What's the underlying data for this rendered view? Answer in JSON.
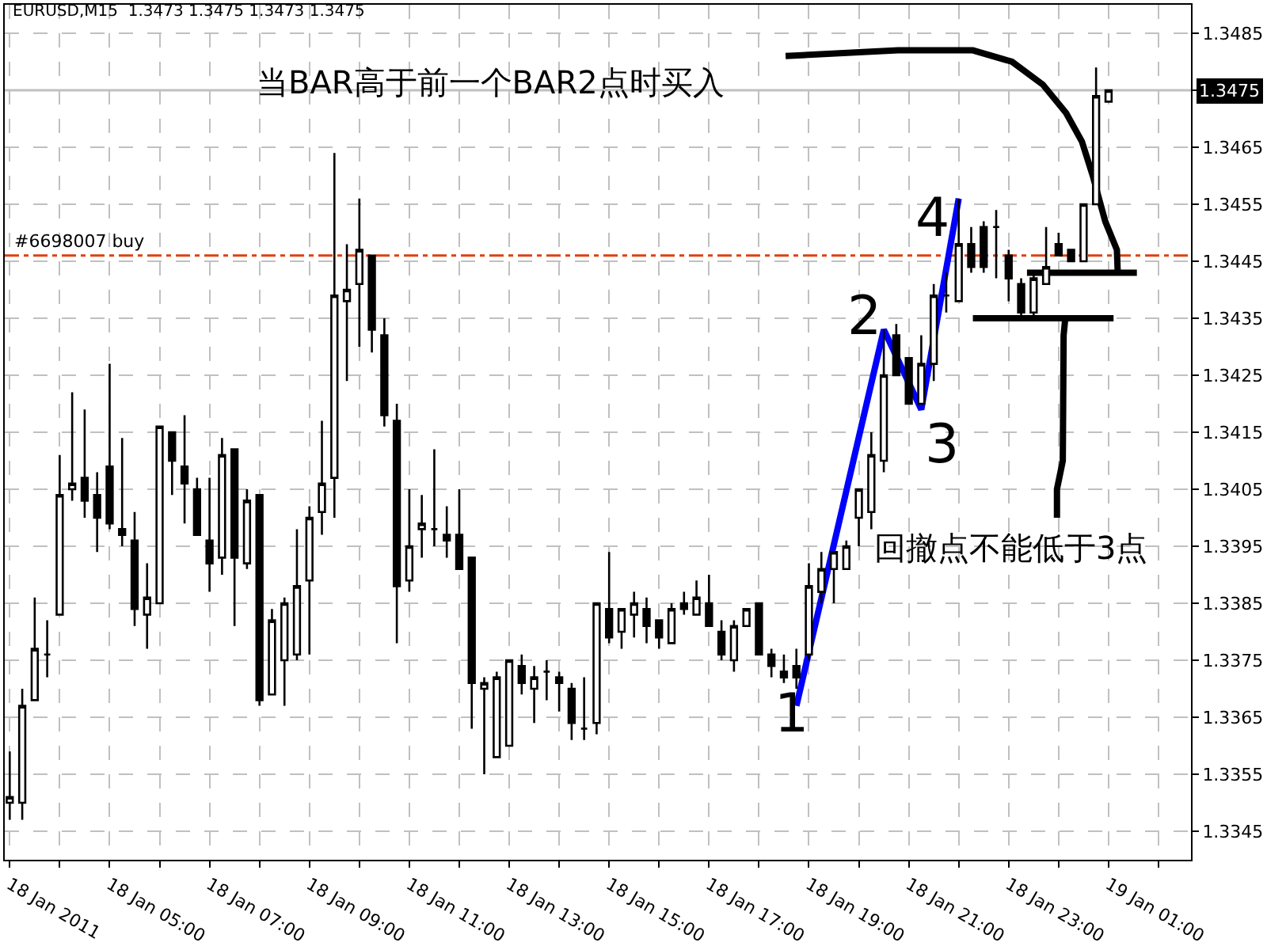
{
  "chart_data": {
    "type": "candlestick",
    "title": "EURUSD,M15  1.3473 1.3475 1.3473 1.3475",
    "x": [
      "2011-01-18T03:00",
      "2011-01-18T03:15",
      "2011-01-18T03:30",
      "2011-01-18T03:45",
      "2011-01-18T04:00",
      "2011-01-18T04:15",
      "2011-01-18T04:30",
      "2011-01-18T04:45",
      "2011-01-18T05:00",
      "2011-01-18T05:15",
      "2011-01-18T05:30",
      "2011-01-18T05:45",
      "2011-01-18T06:00",
      "2011-01-18T06:15",
      "2011-01-18T06:30",
      "2011-01-18T06:45",
      "2011-01-18T07:00",
      "2011-01-18T07:15",
      "2011-01-18T07:30",
      "2011-01-18T07:45",
      "2011-01-18T08:00",
      "2011-01-18T08:15",
      "2011-01-18T08:30",
      "2011-01-18T08:45",
      "2011-01-18T09:00",
      "2011-01-18T09:15",
      "2011-01-18T09:30",
      "2011-01-18T09:45",
      "2011-01-18T10:00",
      "2011-01-18T10:15",
      "2011-01-18T10:30",
      "2011-01-18T10:45",
      "2011-01-18T11:00",
      "2011-01-18T11:15",
      "2011-01-18T11:30",
      "2011-01-18T11:45",
      "2011-01-18T12:00",
      "2011-01-18T12:15",
      "2011-01-18T12:30",
      "2011-01-18T12:45",
      "2011-01-18T13:00",
      "2011-01-18T13:15",
      "2011-01-18T13:30",
      "2011-01-18T13:45",
      "2011-01-18T14:00",
      "2011-01-18T14:15",
      "2011-01-18T14:30",
      "2011-01-18T14:45",
      "2011-01-18T15:00",
      "2011-01-18T15:15",
      "2011-01-18T15:30",
      "2011-01-18T15:45",
      "2011-01-18T16:00",
      "2011-01-18T16:15",
      "2011-01-18T16:30",
      "2011-01-18T16:45",
      "2011-01-18T17:00",
      "2011-01-18T17:15",
      "2011-01-18T17:30",
      "2011-01-18T17:45",
      "2011-01-18T18:00",
      "2011-01-18T18:15",
      "2011-01-18T18:30",
      "2011-01-18T18:45",
      "2011-01-18T19:00",
      "2011-01-18T19:15",
      "2011-01-18T19:30",
      "2011-01-18T19:45",
      "2011-01-18T20:00",
      "2011-01-18T20:15",
      "2011-01-18T20:30",
      "2011-01-18T20:45",
      "2011-01-18T21:00",
      "2011-01-18T21:15",
      "2011-01-18T21:30",
      "2011-01-18T21:45",
      "2011-01-18T22:00",
      "2011-01-18T22:15",
      "2011-01-18T22:30",
      "2011-01-18T22:45",
      "2011-01-18T23:00",
      "2011-01-18T23:15",
      "2011-01-18T23:30",
      "2011-01-18T23:45",
      "2011-01-19T00:00",
      "2011-01-19T00:15",
      "2011-01-19T00:30",
      "2011-01-19T00:45",
      "2011-01-19T01:00"
    ],
    "ohlc": [
      [
        1.335,
        1.3359,
        1.3347,
        1.3351
      ],
      [
        1.335,
        1.337,
        1.3347,
        1.3367
      ],
      [
        1.3368,
        1.3386,
        1.3368,
        1.3377
      ],
      [
        1.3376,
        1.3382,
        1.3372,
        1.3376
      ],
      [
        1.3383,
        1.3411,
        1.3383,
        1.3404
      ],
      [
        1.3405,
        1.3422,
        1.3403,
        1.3406
      ],
      [
        1.3407,
        1.3419,
        1.34,
        1.3403
      ],
      [
        1.3404,
        1.3408,
        1.3394,
        1.34
      ],
      [
        1.3409,
        1.3427,
        1.3398,
        1.3399
      ],
      [
        1.3398,
        1.3414,
        1.3395,
        1.3397
      ],
      [
        1.3396,
        1.3401,
        1.3381,
        1.3384
      ],
      [
        1.3383,
        1.3392,
        1.3377,
        1.3386
      ],
      [
        1.3385,
        1.3416,
        1.3385,
        1.3416
      ],
      [
        1.3415,
        1.3415,
        1.3404,
        1.341
      ],
      [
        1.3409,
        1.3418,
        1.3399,
        1.3406
      ],
      [
        1.3405,
        1.3407,
        1.3397,
        1.3397
      ],
      [
        1.3396,
        1.3407,
        1.3387,
        1.3392
      ],
      [
        1.3393,
        1.3414,
        1.339,
        1.3411
      ],
      [
        1.3412,
        1.3412,
        1.3381,
        1.3393
      ],
      [
        1.3392,
        1.3405,
        1.3391,
        1.3403
      ],
      [
        1.3404,
        1.3404,
        1.3367,
        1.3368
      ],
      [
        1.3369,
        1.3384,
        1.3369,
        1.3382
      ],
      [
        1.3375,
        1.3386,
        1.3367,
        1.3385
      ],
      [
        1.3376,
        1.3398,
        1.3375,
        1.3388
      ],
      [
        1.3389,
        1.3402,
        1.3376,
        1.34
      ],
      [
        1.3401,
        1.3417,
        1.3397,
        1.3406
      ],
      [
        1.3407,
        1.3464,
        1.34,
        1.3439
      ],
      [
        1.3438,
        1.3448,
        1.3424,
        1.344
      ],
      [
        1.3441,
        1.3456,
        1.343,
        1.3447
      ],
      [
        1.3446,
        1.3446,
        1.3429,
        1.3433
      ],
      [
        1.3432,
        1.3435,
        1.3416,
        1.3418
      ],
      [
        1.3417,
        1.342,
        1.3378,
        1.3388
      ],
      [
        1.3389,
        1.3405,
        1.3387,
        1.3395
      ],
      [
        1.3398,
        1.3404,
        1.3393,
        1.3399
      ],
      [
        1.3398,
        1.3412,
        1.3395,
        1.3398
      ],
      [
        1.3397,
        1.3402,
        1.3393,
        1.3396
      ],
      [
        1.3397,
        1.3405,
        1.3391,
        1.3391
      ],
      [
        1.3393,
        1.3393,
        1.3363,
        1.3371
      ],
      [
        1.337,
        1.3372,
        1.3355,
        1.3371
      ],
      [
        1.3358,
        1.3373,
        1.3358,
        1.3372
      ],
      [
        1.336,
        1.3375,
        1.336,
        1.3375
      ],
      [
        1.3374,
        1.3376,
        1.3369,
        1.3371
      ],
      [
        1.337,
        1.3374,
        1.3364,
        1.3372
      ],
      [
        1.3373,
        1.3375,
        1.3368,
        1.3373
      ],
      [
        1.3372,
        1.3373,
        1.3366,
        1.3371
      ],
      [
        1.337,
        1.3371,
        1.3361,
        1.3364
      ],
      [
        1.3363,
        1.3372,
        1.3361,
        1.3363
      ],
      [
        1.3364,
        1.3385,
        1.3362,
        1.3385
      ],
      [
        1.3384,
        1.3394,
        1.3378,
        1.3379
      ],
      [
        1.338,
        1.3384,
        1.3377,
        1.3384
      ],
      [
        1.3383,
        1.3387,
        1.3379,
        1.3385
      ],
      [
        1.3384,
        1.3386,
        1.3378,
        1.3381
      ],
      [
        1.3382,
        1.3382,
        1.3377,
        1.3379
      ],
      [
        1.3378,
        1.3385,
        1.3378,
        1.3384
      ],
      [
        1.3385,
        1.3387,
        1.3383,
        1.3384
      ],
      [
        1.3383,
        1.3389,
        1.3383,
        1.3386
      ],
      [
        1.3385,
        1.339,
        1.3381,
        1.3381
      ],
      [
        1.338,
        1.3382,
        1.3375,
        1.3376
      ],
      [
        1.3375,
        1.3382,
        1.3373,
        1.3381
      ],
      [
        1.3381,
        1.3384,
        1.3381,
        1.3384
      ],
      [
        1.3385,
        1.3385,
        1.3376,
        1.3376
      ],
      [
        1.3376,
        1.3377,
        1.3372,
        1.3374
      ],
      [
        1.3373,
        1.3376,
        1.3371,
        1.3372
      ],
      [
        1.3374,
        1.3377,
        1.337,
        1.3372
      ],
      [
        1.3376,
        1.3392,
        1.3375,
        1.3388
      ],
      [
        1.3387,
        1.3394,
        1.3385,
        1.3391
      ],
      [
        1.3391,
        1.3394,
        1.3385,
        1.3394
      ],
      [
        1.3391,
        1.3396,
        1.3391,
        1.3395
      ],
      [
        1.34,
        1.3405,
        1.3395,
        1.3405
      ],
      [
        1.3401,
        1.3415,
        1.3398,
        1.3411
      ],
      [
        1.341,
        1.3433,
        1.3408,
        1.3425
      ],
      [
        1.3432,
        1.3434,
        1.3425,
        1.3425
      ],
      [
        1.3428,
        1.3428,
        1.342,
        1.342
      ],
      [
        1.342,
        1.3432,
        1.342,
        1.3427
      ],
      [
        1.3427,
        1.3441,
        1.3424,
        1.3439
      ],
      [
        1.3439,
        1.3443,
        1.3436,
        1.3439
      ],
      [
        1.3438,
        1.3456,
        1.3438,
        1.3448
      ],
      [
        1.3448,
        1.3451,
        1.3443,
        1.3444
      ],
      [
        1.3451,
        1.3452,
        1.3443,
        1.3444
      ],
      [
        1.3451,
        1.3454,
        1.3442,
        1.3451
      ],
      [
        1.3446,
        1.3447,
        1.3438,
        1.3442
      ],
      [
        1.3441,
        1.3442,
        1.3435,
        1.3436
      ],
      [
        1.3436,
        1.3443,
        1.3435,
        1.3442
      ],
      [
        1.3441,
        1.3451,
        1.3441,
        1.3444
      ],
      [
        1.3448,
        1.345,
        1.3446,
        1.3446
      ],
      [
        1.3447,
        1.3447,
        1.3445,
        1.3445
      ],
      [
        1.3445,
        1.3455,
        1.3445,
        1.3455
      ],
      [
        1.3455,
        1.3479,
        1.3455,
        1.3474
      ],
      [
        1.3473,
        1.3475,
        1.3473,
        1.3475
      ]
    ],
    "color": "#000000",
    "series": [
      {
        "type": "line",
        "color": "#0000ff",
        "x": [
          "2011-01-18T18:45",
          "2011-01-18T20:30",
          "2011-01-18T21:15",
          "2011-01-18T22:00"
        ],
        "values": [
          1.3367,
          1.3433,
          1.3419,
          1.3456
        ]
      },
      {
        "type": "line",
        "color": "#000000",
        "x": [
          "2011-01-18T18:32",
          "2011-01-18T20:47",
          "2011-01-18T22:17",
          "2011-01-18T23:04",
          "2011-01-18T23:41",
          "2011-01-19T00:09",
          "2011-01-19T00:28",
          "2011-01-19T00:41",
          "2011-01-19T00:56",
          "2011-01-19T01:10",
          "2011-01-19T01:11"
        ],
        "values": [
          1.3481,
          1.3482,
          1.3482,
          1.348,
          1.3476,
          1.3471,
          1.3466,
          1.346,
          1.3452,
          1.3447,
          1.3443
        ]
      },
      {
        "type": "line",
        "color": "#000000",
        "x": [
          "2011-01-18T23:22",
          "2011-01-19T01:34"
        ],
        "values": [
          1.3443,
          1.3443
        ]
      },
      {
        "type": "line",
        "color": "#000000",
        "x": [
          "2011-01-18T22:17",
          "2011-01-19T01:06"
        ],
        "values": [
          1.3435,
          1.3435
        ]
      },
      {
        "type": "line",
        "color": "#000000",
        "x": [
          "2011-01-19T00:08",
          "2011-01-19T00:06",
          "2011-01-19T00:05",
          "2011-01-18T23:58",
          "2011-01-18T23:58"
        ],
        "values": [
          1.3435,
          1.3432,
          1.341,
          1.3405,
          1.34
        ]
      }
    ],
    "annotations": [
      "当BAR高于前一个BAR2点时买入",
      "回撤点不能低于3点",
      "1",
      "2",
      "3",
      "4"
    ],
    "ref_lines": [
      {
        "axis": "y",
        "value": 1.3475,
        "label": "1.3475",
        "color": "#c0c0c0",
        "line_style": "solid"
      },
      {
        "axis": "y",
        "value": 1.3446,
        "label": "#6698007 buy",
        "color": "#e04010",
        "line_style": "dashdot"
      }
    ],
    "xlim": [
      "2011-01-18T02:54",
      "2011-01-19T02:39"
    ],
    "xticks": [
      {
        "value": "2011-01-18T03:00",
        "label": "18 Jan 2011"
      },
      {
        "value": "2011-01-18T04:00",
        "label": null
      },
      {
        "value": "2011-01-18T05:00",
        "label": "18 Jan 05:00"
      },
      {
        "value": "2011-01-18T06:00",
        "label": null
      },
      {
        "value": "2011-01-18T07:00",
        "label": "18 Jan 07:00"
      },
      {
        "value": "2011-01-18T08:00",
        "label": null
      },
      {
        "value": "2011-01-18T09:00",
        "label": "18 Jan 09:00"
      },
      {
        "value": "2011-01-18T10:00",
        "label": null
      },
      {
        "value": "2011-01-18T11:00",
        "label": "18 Jan 11:00"
      },
      {
        "value": "2011-01-18T12:00",
        "label": null
      },
      {
        "value": "2011-01-18T13:00",
        "label": "18 Jan 13:00"
      },
      {
        "value": "2011-01-18T14:00",
        "label": null
      },
      {
        "value": "2011-01-18T15:00",
        "label": "18 Jan 15:00"
      },
      {
        "value": "2011-01-18T16:00",
        "label": null
      },
      {
        "value": "2011-01-18T17:00",
        "label": "18 Jan 17:00"
      },
      {
        "value": "2011-01-18T18:00",
        "label": null
      },
      {
        "value": "2011-01-18T19:00",
        "label": "18 Jan 19:00"
      },
      {
        "value": "2011-01-18T20:00",
        "label": null
      },
      {
        "value": "2011-01-18T21:00",
        "label": "18 Jan 21:00"
      },
      {
        "value": "2011-01-18T22:00",
        "label": null
      },
      {
        "value": "2011-01-18T23:00",
        "label": "18 Jan 23:00"
      },
      {
        "value": "2011-01-19T00:00",
        "label": null
      },
      {
        "value": "2011-01-19T01:00",
        "label": "19 Jan 01:00"
      },
      {
        "value": "2011-01-19T02:00",
        "label": null
      }
    ],
    "ylim": [
      1.334,
      1.349
    ],
    "yticks": [
      1.3345,
      1.3355,
      1.3365,
      1.3375,
      1.3385,
      1.3395,
      1.3405,
      1.3415,
      1.3425,
      1.3435,
      1.3445,
      1.3455,
      1.3465,
      1.3475,
      1.3485
    ],
    "grid": true
  }
}
